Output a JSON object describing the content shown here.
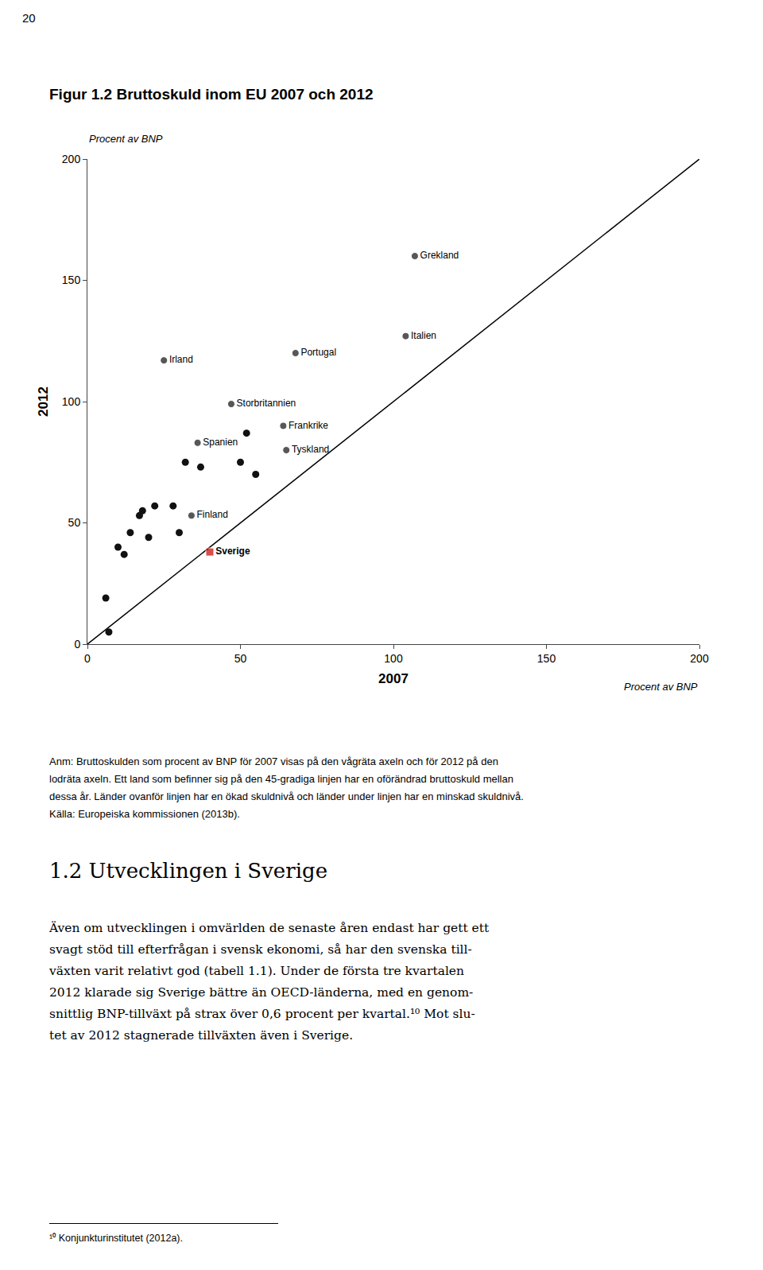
{
  "page_number": "20",
  "note_lines": [
    "Anm: Bruttoskulden som procent av BNP för 2007 visas på den vågräta axeln och för 2012 på den",
    "lodräta axeln. Ett land som befinner sig på den 45-gradiga linjen har en oförändrad bruttoskuld mellan",
    "dessa år. Länder ovanför linjen har en ökad skuldnivå och länder under linjen har en minskad skuldnivå.",
    "Källa: Europeiska kommissionen (2013b)."
  ],
  "section_title": "1.2 Utvecklingen i Sverige",
  "body_lines": [
    "Även om utvecklingen i omvärlden de senaste åren endast har gett ett",
    "svagt stöd till efterfrågan i svensk ekonomi, så har den svenska till-",
    "växten varit relativt god (tabell 1.1). Under de första tre kvartalen",
    "2012 klarade sig Sverige bättre än OECD-länderna, med en genom-",
    "snittlig BNP-tillväxt på strax över 0,6 procent per kvartal.¹⁰ Mot slu-",
    "tet av 2012 stagnerade tillväxten även i Sverige."
  ],
  "footnote": "¹⁰ Konjunkturinstitutet (2012a).",
  "background_color": "#ffffff",
  "text_color": "#000000",
  "chart_data": {
    "type": "scatter",
    "title": "Figur 1.2 Bruttoskuld inom EU 2007 och 2012",
    "x_label": "2007",
    "y_label": "2012",
    "x_unit_label": "Procent av BNP",
    "y_unit_label": "Procent av BNP",
    "xlim": [
      0,
      200
    ],
    "ylim": [
      0,
      200
    ],
    "xticks": [
      0,
      50,
      100,
      150,
      200
    ],
    "yticks": [
      0,
      50,
      100,
      150,
      200
    ],
    "grid": false,
    "reference_line": {
      "x": [
        0,
        200
      ],
      "y": [
        0,
        200
      ],
      "color": "#000000"
    },
    "labeled_points": [
      {
        "label": "Sverige",
        "x": 40,
        "y": 38,
        "marker": "square",
        "color": "#cc0000",
        "bold": true
      },
      {
        "label": "Finland",
        "x": 34,
        "y": 53,
        "marker": "circle",
        "color": "#111111",
        "bold": false
      },
      {
        "label": "Irland",
        "x": 25,
        "y": 117,
        "marker": "circle",
        "color": "#111111",
        "bold": false
      },
      {
        "label": "Portugal",
        "x": 68,
        "y": 120,
        "marker": "circle",
        "color": "#111111",
        "bold": false
      },
      {
        "label": "Italien",
        "x": 104,
        "y": 127,
        "marker": "circle",
        "color": "#111111",
        "bold": false
      },
      {
        "label": "Grekland",
        "x": 107,
        "y": 160,
        "marker": "circle",
        "color": "#111111",
        "bold": false
      },
      {
        "label": "Storbritannien",
        "x": 47,
        "y": 99,
        "marker": "circle",
        "color": "#111111",
        "bold": false
      },
      {
        "label": "Frankrike",
        "x": 64,
        "y": 90,
        "marker": "circle",
        "color": "#111111",
        "bold": false
      },
      {
        "label": "Tyskland",
        "x": 65,
        "y": 80,
        "marker": "circle",
        "color": "#111111",
        "bold": false
      },
      {
        "label": "Spanien",
        "x": 36,
        "y": 83,
        "marker": "circle",
        "color": "#111111",
        "bold": false
      }
    ],
    "unlabeled_points": {
      "x": [
        6,
        7,
        10,
        12,
        14,
        17,
        18,
        20,
        22,
        28,
        30,
        32,
        37,
        50,
        52,
        55
      ],
      "y": [
        19,
        5,
        40,
        37,
        46,
        53,
        55,
        44,
        57,
        57,
        46,
        75,
        73,
        75,
        87,
        70
      ],
      "color": "#111111"
    }
  }
}
